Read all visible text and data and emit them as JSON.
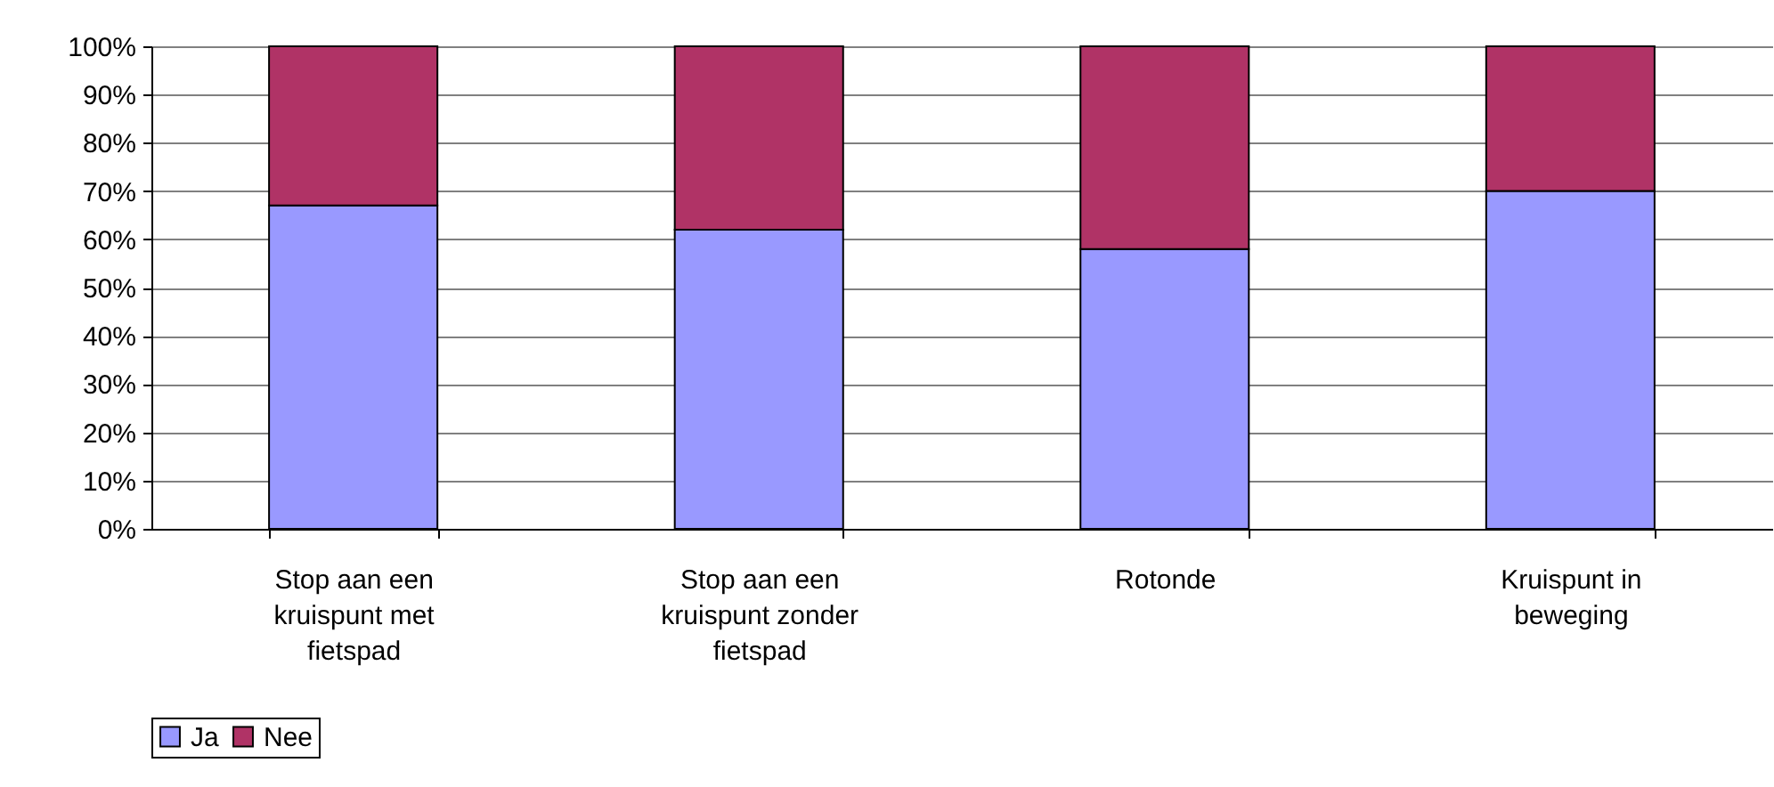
{
  "chart_data": {
    "type": "bar",
    "stacked": true,
    "categories": [
      "Stop aan een\nkruispunt met\nfietspad",
      "Stop aan een\nkruispunt zonder\nfietspad",
      "Rotonde",
      "Kruispunt in\nbeweging"
    ],
    "series": [
      {
        "name": "Ja",
        "color": "#9999ff",
        "values": [
          67,
          62,
          58,
          70
        ]
      },
      {
        "name": "Nee",
        "color": "#b03366",
        "values": [
          33,
          38,
          42,
          30
        ]
      }
    ],
    "ylim": [
      0,
      100
    ],
    "yticks": [
      {
        "value": 0,
        "label": "0%"
      },
      {
        "value": 10,
        "label": "10%"
      },
      {
        "value": 20,
        "label": "20%"
      },
      {
        "value": 30,
        "label": "30%"
      },
      {
        "value": 40,
        "label": "40%"
      },
      {
        "value": 50,
        "label": "50%"
      },
      {
        "value": 60,
        "label": "60%"
      },
      {
        "value": 70,
        "label": "70%"
      },
      {
        "value": 80,
        "label": "80%"
      },
      {
        "value": 90,
        "label": "90%"
      },
      {
        "value": 100,
        "label": "100%"
      }
    ],
    "grid": "y",
    "legend": "bottom"
  }
}
